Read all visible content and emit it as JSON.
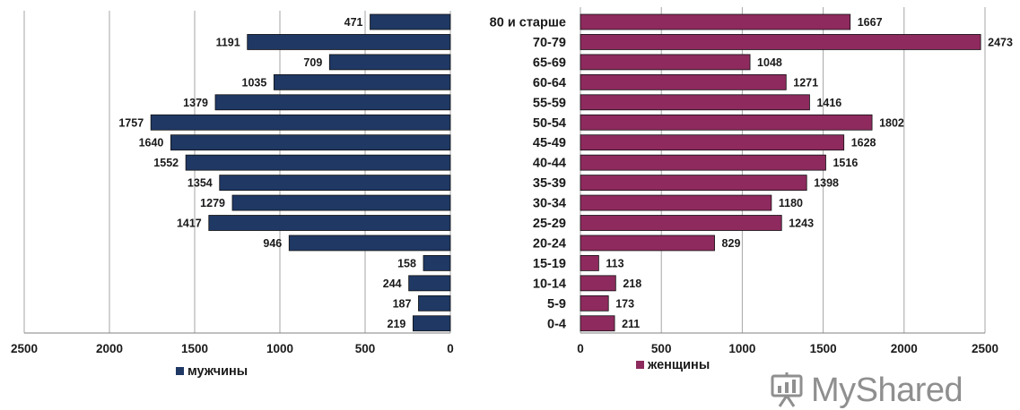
{
  "chart_data": [
    {
      "type": "bar",
      "orientation": "horizontal",
      "axis_direction": "reversed",
      "categories": [
        "80 и старше",
        "70-79",
        "65-69",
        "60-64",
        "55-59",
        "50-54",
        "45-49",
        "40-44",
        "35-39",
        "30-34",
        "25-29",
        "20-24",
        "15-19",
        "10-14",
        "5-9",
        "0-4"
      ],
      "series": [
        {
          "name": "мужчины",
          "values": [
            471,
            1191,
            709,
            1035,
            1379,
            1757,
            1640,
            1552,
            1354,
            1279,
            1417,
            946,
            158,
            244,
            187,
            219
          ]
        }
      ],
      "xlim": [
        0,
        2500
      ],
      "xticks": [
        0,
        500,
        1000,
        1500,
        2000,
        2500
      ],
      "grid": true,
      "legend": "bottom-left",
      "color": "#1f3864"
    },
    {
      "type": "bar",
      "orientation": "horizontal",
      "categories": [
        "80 и старше",
        "70-79",
        "65-69",
        "60-64",
        "55-59",
        "50-54",
        "45-49",
        "40-44",
        "35-39",
        "30-34",
        "25-29",
        "20-24",
        "15-19",
        "10-14",
        "5-9",
        "0-4"
      ],
      "series": [
        {
          "name": "женщины",
          "values": [
            1667,
            2473,
            1048,
            1271,
            1416,
            1802,
            1628,
            1516,
            1398,
            1180,
            1243,
            829,
            113,
            218,
            173,
            211
          ]
        }
      ],
      "xlim": [
        0,
        2500
      ],
      "xticks": [
        0,
        500,
        1000,
        1500,
        2000,
        2500
      ],
      "grid": true,
      "legend": "bottom-left",
      "color": "#8e2a5e"
    }
  ],
  "watermark": {
    "text": "MyShared",
    "icon": "presentation-board-icon"
  }
}
